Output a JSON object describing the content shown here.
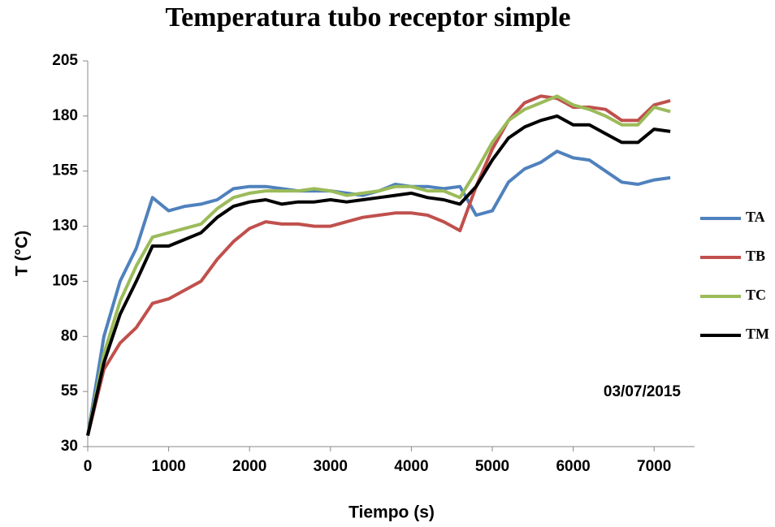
{
  "chart_data": {
    "type": "line",
    "title": "Temperatura  tubo receptor simple",
    "x_label": "Tiempo (s)",
    "y_label": "T (°C)",
    "annotation": "03/07/2015",
    "xlim": [
      0,
      7500
    ],
    "ylim": [
      30,
      205
    ],
    "xticks": [
      0,
      1000,
      2000,
      3000,
      4000,
      5000,
      6000,
      7000
    ],
    "yticks": [
      30,
      55,
      80,
      105,
      130,
      155,
      180,
      205
    ],
    "grid": false,
    "legend": "right",
    "x": [
      0,
      200,
      400,
      600,
      800,
      1000,
      1200,
      1400,
      1600,
      1800,
      2000,
      2200,
      2400,
      2600,
      2800,
      3000,
      3200,
      3400,
      3600,
      3800,
      4000,
      4200,
      4400,
      4600,
      4800,
      5000,
      5200,
      5400,
      5600,
      5800,
      6000,
      6200,
      6400,
      6600,
      6800,
      7000,
      7200
    ],
    "series": [
      {
        "name": "TA",
        "color": "#4f81bd",
        "values": [
          35,
          80,
          105,
          120,
          143,
          137,
          139,
          140,
          142,
          147,
          148,
          148,
          147,
          146,
          146,
          146,
          145,
          144,
          146,
          149,
          148,
          148,
          147,
          148,
          135,
          137,
          150,
          156,
          159,
          164,
          161,
          160,
          155,
          150,
          149,
          151,
          152
        ]
      },
      {
        "name": "TB",
        "color": "#c0504d",
        "values": [
          35,
          65,
          77,
          84,
          95,
          97,
          101,
          105,
          115,
          123,
          129,
          132,
          131,
          131,
          130,
          130,
          132,
          134,
          135,
          136,
          136,
          135,
          132,
          128,
          148,
          165,
          178,
          186,
          189,
          188,
          184,
          184,
          183,
          178,
          178,
          185,
          187
        ]
      },
      {
        "name": "TC",
        "color": "#9bbb59",
        "values": [
          35,
          72,
          96,
          112,
          125,
          127,
          129,
          131,
          138,
          143,
          145,
          146,
          146,
          146,
          147,
          146,
          144,
          145,
          146,
          148,
          148,
          146,
          146,
          143,
          155,
          168,
          178,
          183,
          186,
          189,
          185,
          183,
          180,
          176,
          176,
          184,
          182
        ]
      },
      {
        "name": "TM",
        "color": "#000000",
        "values": [
          35,
          68,
          90,
          105,
          121,
          121,
          124,
          127,
          134,
          139,
          141,
          142,
          140,
          141,
          141,
          142,
          141,
          142,
          143,
          144,
          145,
          143,
          142,
          140,
          148,
          160,
          170,
          175,
          178,
          180,
          176,
          176,
          172,
          168,
          168,
          174,
          173
        ]
      }
    ]
  }
}
